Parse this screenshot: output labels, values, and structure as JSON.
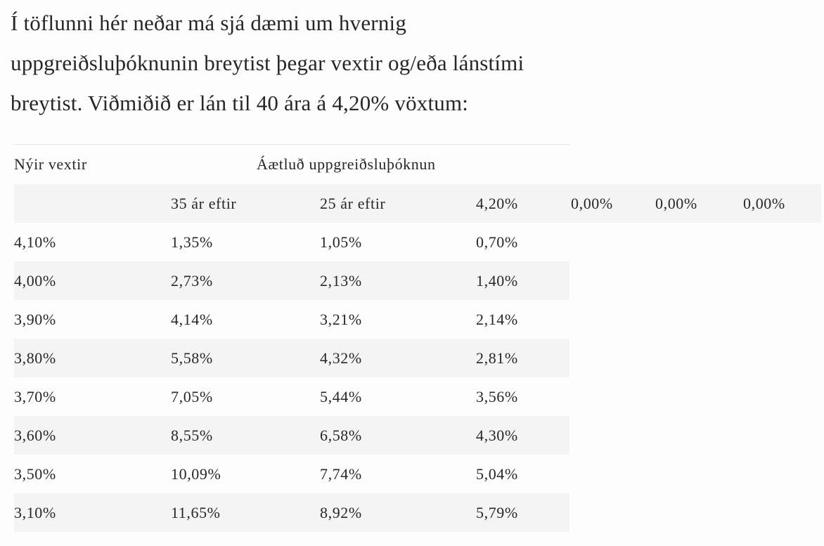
{
  "page": {
    "background": "#fdfdfd",
    "text_color": "#26262b",
    "stripe_color": "#f4f4f5",
    "rule_color": "#e5e5e6"
  },
  "intro": {
    "full_text": "Í töflunni hér neðar má sjá dæmi um hvernig uppgreiðsluþóknunin breytist þegar vextir og/eða lánstími breytist. Viðmiðið er lán til 40 ára á 4,20% vöxtum:",
    "lines": [
      "Í töflunni hér neðar má sjá dæmi um hvernig",
      "uppgreiðsluþóknunin breytist þegar vextir og/eða lánstími",
      "breytist. Viðmiðið er lán til 40 ára á 4,20% vöxtum:"
    ]
  },
  "table": {
    "header": {
      "col1": "Nýir vextir",
      "col2": "Áætluð uppgreiðsluþóknun"
    },
    "subheader": [
      "",
      "35 ár eftir",
      "25 ár eftir",
      "4,20%",
      "0,00%",
      "0,00%",
      "0,00%"
    ],
    "rows": [
      {
        "cells": [
          "4,10%",
          "1,35%",
          "1,05%",
          "0,70%"
        ]
      },
      {
        "cells": [
          "4,00%",
          "2,73%",
          "2,13%",
          "1,40%"
        ]
      },
      {
        "cells": [
          "3,90%",
          "4,14%",
          "3,21%",
          "2,14%"
        ]
      },
      {
        "cells": [
          "3,80%",
          "5,58%",
          "4,32%",
          "2,81%"
        ]
      },
      {
        "cells": [
          "3,70%",
          "7,05%",
          "5,44%",
          "3,56%"
        ]
      },
      {
        "cells": [
          "3,60%",
          "8,55%",
          "6,58%",
          "4,30%"
        ]
      },
      {
        "cells": [
          "3,50%",
          "10,09%",
          "7,74%",
          "5,04%"
        ]
      },
      {
        "cells": [
          "3,10%",
          "11,65%",
          "8,92%",
          "5,79%"
        ]
      }
    ]
  }
}
